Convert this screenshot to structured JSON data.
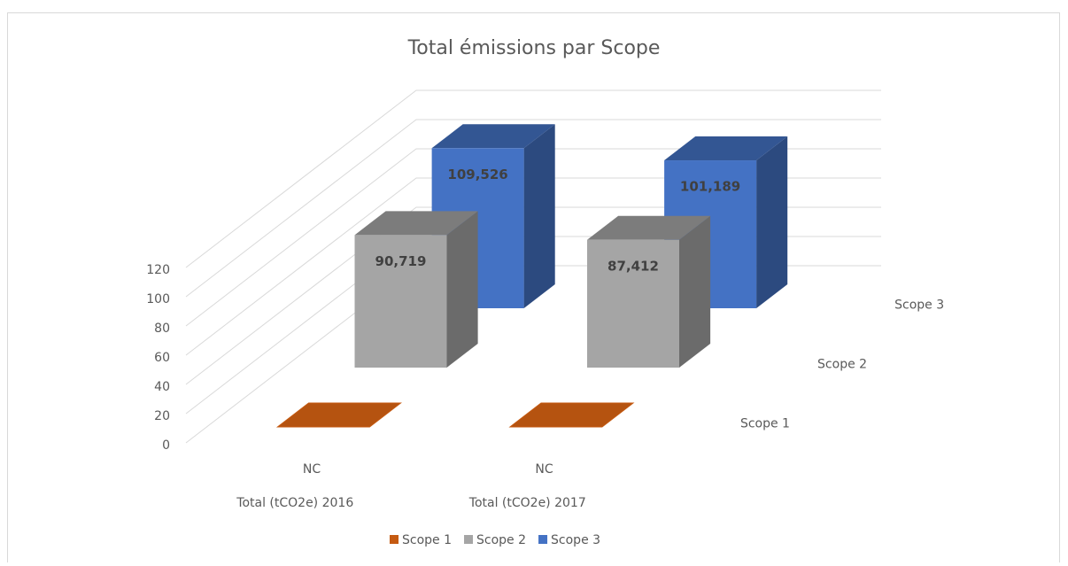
{
  "chart_data": {
    "type": "bar3d",
    "title": "Total émissions par Scope",
    "categories": [
      "Total (tCO2e) 2016",
      "Total (tCO2e) 2017"
    ],
    "series": [
      {
        "name": "Scope 1",
        "color": "#c55a11",
        "values": [
          null,
          null
        ],
        "value_labels": [
          "NC",
          "NC"
        ]
      },
      {
        "name": "Scope 2",
        "color": "#a5a5a5",
        "values": [
          90.719,
          87.412
        ],
        "value_labels": [
          "90,719",
          "87,412"
        ]
      },
      {
        "name": "Scope 3",
        "color": "#4472c4",
        "values": [
          109.526,
          101.189
        ],
        "value_labels": [
          "109,526",
          "101,189"
        ]
      }
    ],
    "ylim": [
      0,
      120
    ],
    "yticks": [
      0,
      20,
      40,
      60,
      80,
      100,
      120
    ],
    "grid": true,
    "legend": "bottom"
  }
}
